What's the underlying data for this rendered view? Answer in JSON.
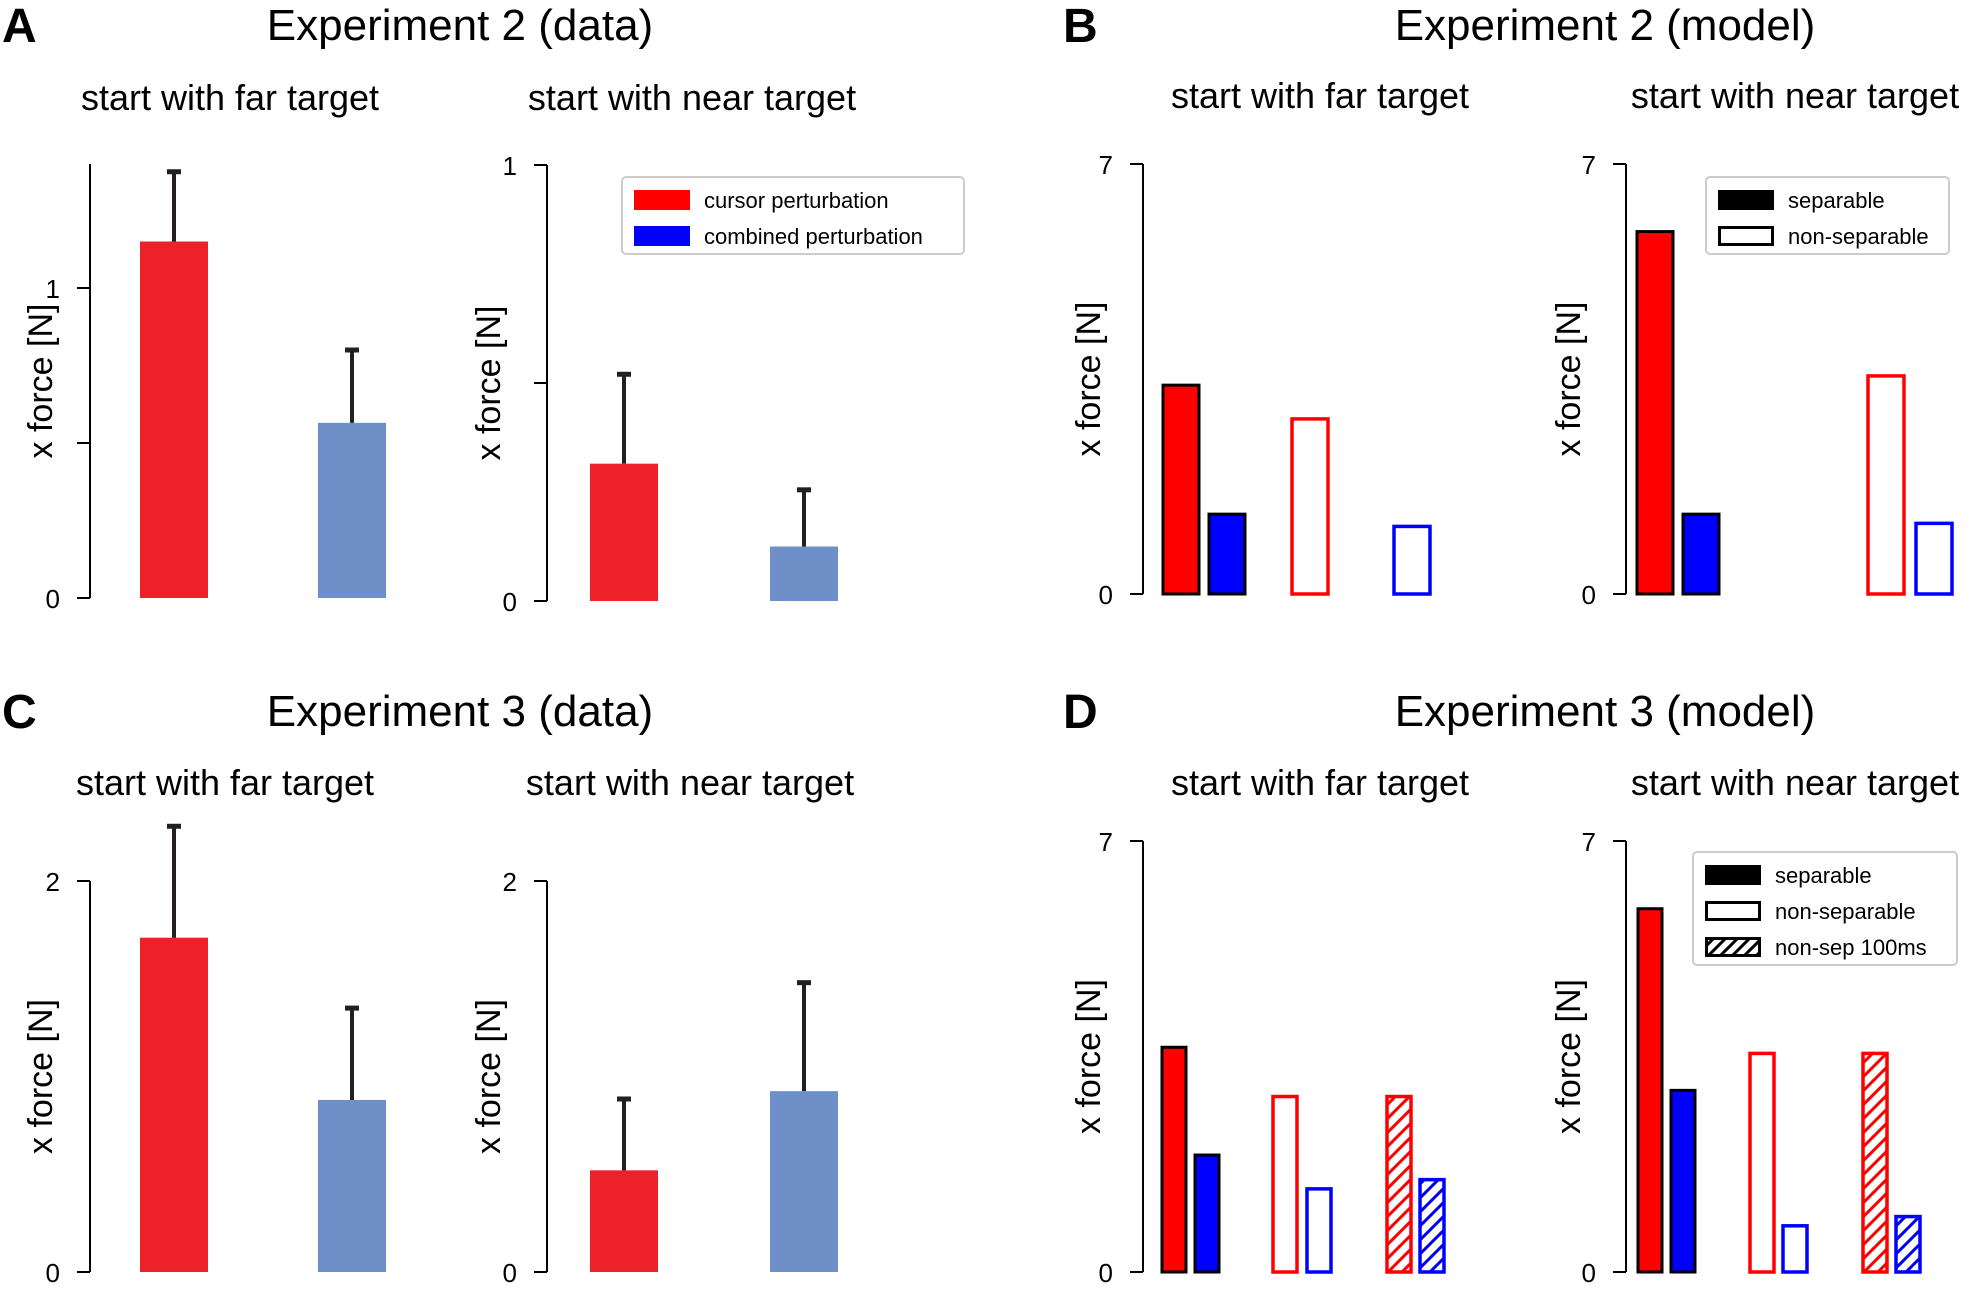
{
  "colors": {
    "data_red": "#ED2129",
    "data_blue": "#6F8FC8",
    "model_red": "#FF0000",
    "model_blue": "#0000FF",
    "error_bar": "#231F20",
    "axis": "#000000"
  },
  "panels": [
    {
      "letter": "A",
      "title": "Experiment 2 (data)"
    },
    {
      "letter": "B",
      "title": "Experiment 2 (model)"
    },
    {
      "letter": "C",
      "title": "Experiment 3 (data)"
    },
    {
      "letter": "D",
      "title": "Experiment 3 (model)"
    }
  ],
  "legends": {
    "data": [
      "cursor perturbation",
      "combined perturbation"
    ],
    "model2": [
      "separable",
      "non-separable"
    ],
    "model3": [
      "separable",
      "non-separable",
      "non-sep 100ms"
    ]
  },
  "chart_data": [
    {
      "id": "A1",
      "panel": "A",
      "type": "bar",
      "title": "start with far target",
      "ylabel": "x force [N]",
      "ylim": [
        0,
        1.4
      ],
      "yticks": [
        0,
        0.5,
        1
      ],
      "ytick_labels": [
        "0",
        "",
        "1"
      ],
      "categories": [
        "cursor perturbation",
        "combined perturbation"
      ],
      "values": [
        1.15,
        0.565
      ],
      "errors": [
        0.225,
        0.235
      ]
    },
    {
      "id": "A2",
      "panel": "A",
      "type": "bar",
      "title": "start with near target",
      "ylabel": "x force [N]",
      "ylim": [
        0,
        1.0
      ],
      "yticks": [
        0,
        0.5,
        1
      ],
      "ytick_labels": [
        "0",
        "",
        "1"
      ],
      "categories": [
        "cursor perturbation",
        "combined perturbation"
      ],
      "values": [
        0.315,
        0.125
      ],
      "errors": [
        0.205,
        0.13
      ],
      "legend": [
        "cursor perturbation",
        "combined perturbation"
      ]
    },
    {
      "id": "B1",
      "panel": "B",
      "type": "bar",
      "title": "start with far target",
      "ylabel": "x force [N]",
      "ylim": [
        0,
        7
      ],
      "yticks": [
        0,
        7
      ],
      "ytick_labels": [
        "0",
        "7"
      ],
      "groups": [
        "separable",
        "non-separable"
      ],
      "series": [
        {
          "name": "cursor perturbation",
          "values": [
            3.4,
            2.85
          ]
        },
        {
          "name": "combined perturbation",
          "values": [
            1.3,
            1.1
          ]
        }
      ]
    },
    {
      "id": "B2",
      "panel": "B",
      "type": "bar",
      "title": "start with near target",
      "ylabel": "x force [N]",
      "ylim": [
        0,
        7
      ],
      "yticks": [
        0,
        7
      ],
      "ytick_labels": [
        "0",
        "7"
      ],
      "groups": [
        "separable",
        "non-separable"
      ],
      "series": [
        {
          "name": "cursor perturbation",
          "values": [
            5.9,
            3.55
          ]
        },
        {
          "name": "combined perturbation",
          "values": [
            1.3,
            1.15
          ]
        }
      ],
      "legend": [
        "separable",
        "non-separable"
      ]
    },
    {
      "id": "C1",
      "panel": "C",
      "type": "bar",
      "title": "start with far target",
      "ylabel": "x force [N]",
      "ylim": [
        0,
        2.0
      ],
      "yticks": [
        0,
        2
      ],
      "ytick_labels": [
        "0",
        "2"
      ],
      "categories": [
        "cursor perturbation",
        "combined perturbation"
      ],
      "values": [
        1.71,
        0.88
      ],
      "errors": [
        0.57,
        0.47
      ]
    },
    {
      "id": "C2",
      "panel": "C",
      "type": "bar",
      "title": "start with near target",
      "ylabel": "x force [N]",
      "ylim": [
        0,
        2.0
      ],
      "yticks": [
        0,
        2
      ],
      "ytick_labels": [
        "0",
        "2"
      ],
      "categories": [
        "cursor perturbation",
        "combined perturbation"
      ],
      "values": [
        0.52,
        0.925
      ],
      "errors": [
        0.365,
        0.555
      ]
    },
    {
      "id": "D1",
      "panel": "D",
      "type": "bar",
      "title": "start with far target",
      "ylabel": "x force [N]",
      "ylim": [
        0,
        7
      ],
      "yticks": [
        0,
        7
      ],
      "ytick_labels": [
        "0",
        "7"
      ],
      "groups": [
        "separable",
        "non-separable",
        "non-sep 100ms"
      ],
      "series": [
        {
          "name": "cursor perturbation",
          "values": [
            3.65,
            2.85,
            2.85
          ]
        },
        {
          "name": "combined perturbation",
          "values": [
            1.9,
            1.35,
            1.5
          ]
        }
      ]
    },
    {
      "id": "D2",
      "panel": "D",
      "type": "bar",
      "title": "start with near target",
      "ylabel": "x force [N]",
      "ylim": [
        0,
        7
      ],
      "yticks": [
        0,
        7
      ],
      "ytick_labels": [
        "0",
        "7"
      ],
      "groups": [
        "separable",
        "non-separable",
        "non-sep 100ms"
      ],
      "series": [
        {
          "name": "cursor perturbation",
          "values": [
            5.9,
            3.55,
            3.55
          ]
        },
        {
          "name": "combined perturbation",
          "values": [
            2.95,
            0.75,
            0.9
          ]
        }
      ],
      "legend": [
        "separable",
        "non-separable",
        "non-sep 100ms"
      ]
    }
  ]
}
